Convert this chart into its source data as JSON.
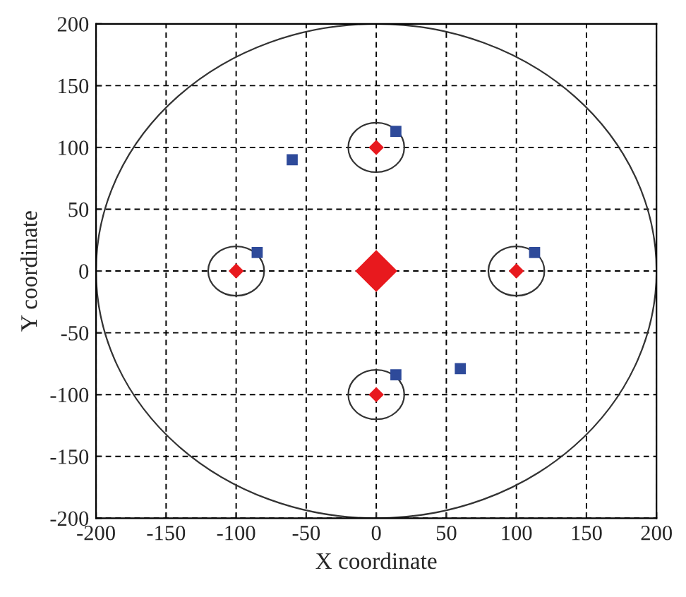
{
  "chart_data": {
    "type": "scatter",
    "xlabel": "X coordinate",
    "ylabel": "Y coordinate",
    "xlim": [
      -200,
      200
    ],
    "ylim": [
      -200,
      200
    ],
    "xticks": [
      -200,
      -150,
      -100,
      -50,
      0,
      50,
      100,
      150,
      200
    ],
    "yticks": [
      -200,
      -150,
      -100,
      -50,
      0,
      50,
      100,
      150,
      200
    ],
    "grid": true,
    "legend": false,
    "series": [
      {
        "type": "scatter",
        "color": "#2e4a9a",
        "marker": "square",
        "x": [
          14,
          -60,
          -85,
          113,
          14,
          60
        ],
        "values": [
          113,
          90,
          15,
          15,
          -84,
          -79
        ]
      },
      {
        "type": "bubble",
        "color": "#e8191e",
        "marker": "diamond",
        "x": [
          0,
          0,
          -100,
          100,
          0
        ],
        "values": [
          0,
          100,
          0,
          0,
          -100
        ],
        "sizes": [
          1,
          0.13,
          0.13,
          0.13,
          0.13
        ]
      }
    ]
  }
}
